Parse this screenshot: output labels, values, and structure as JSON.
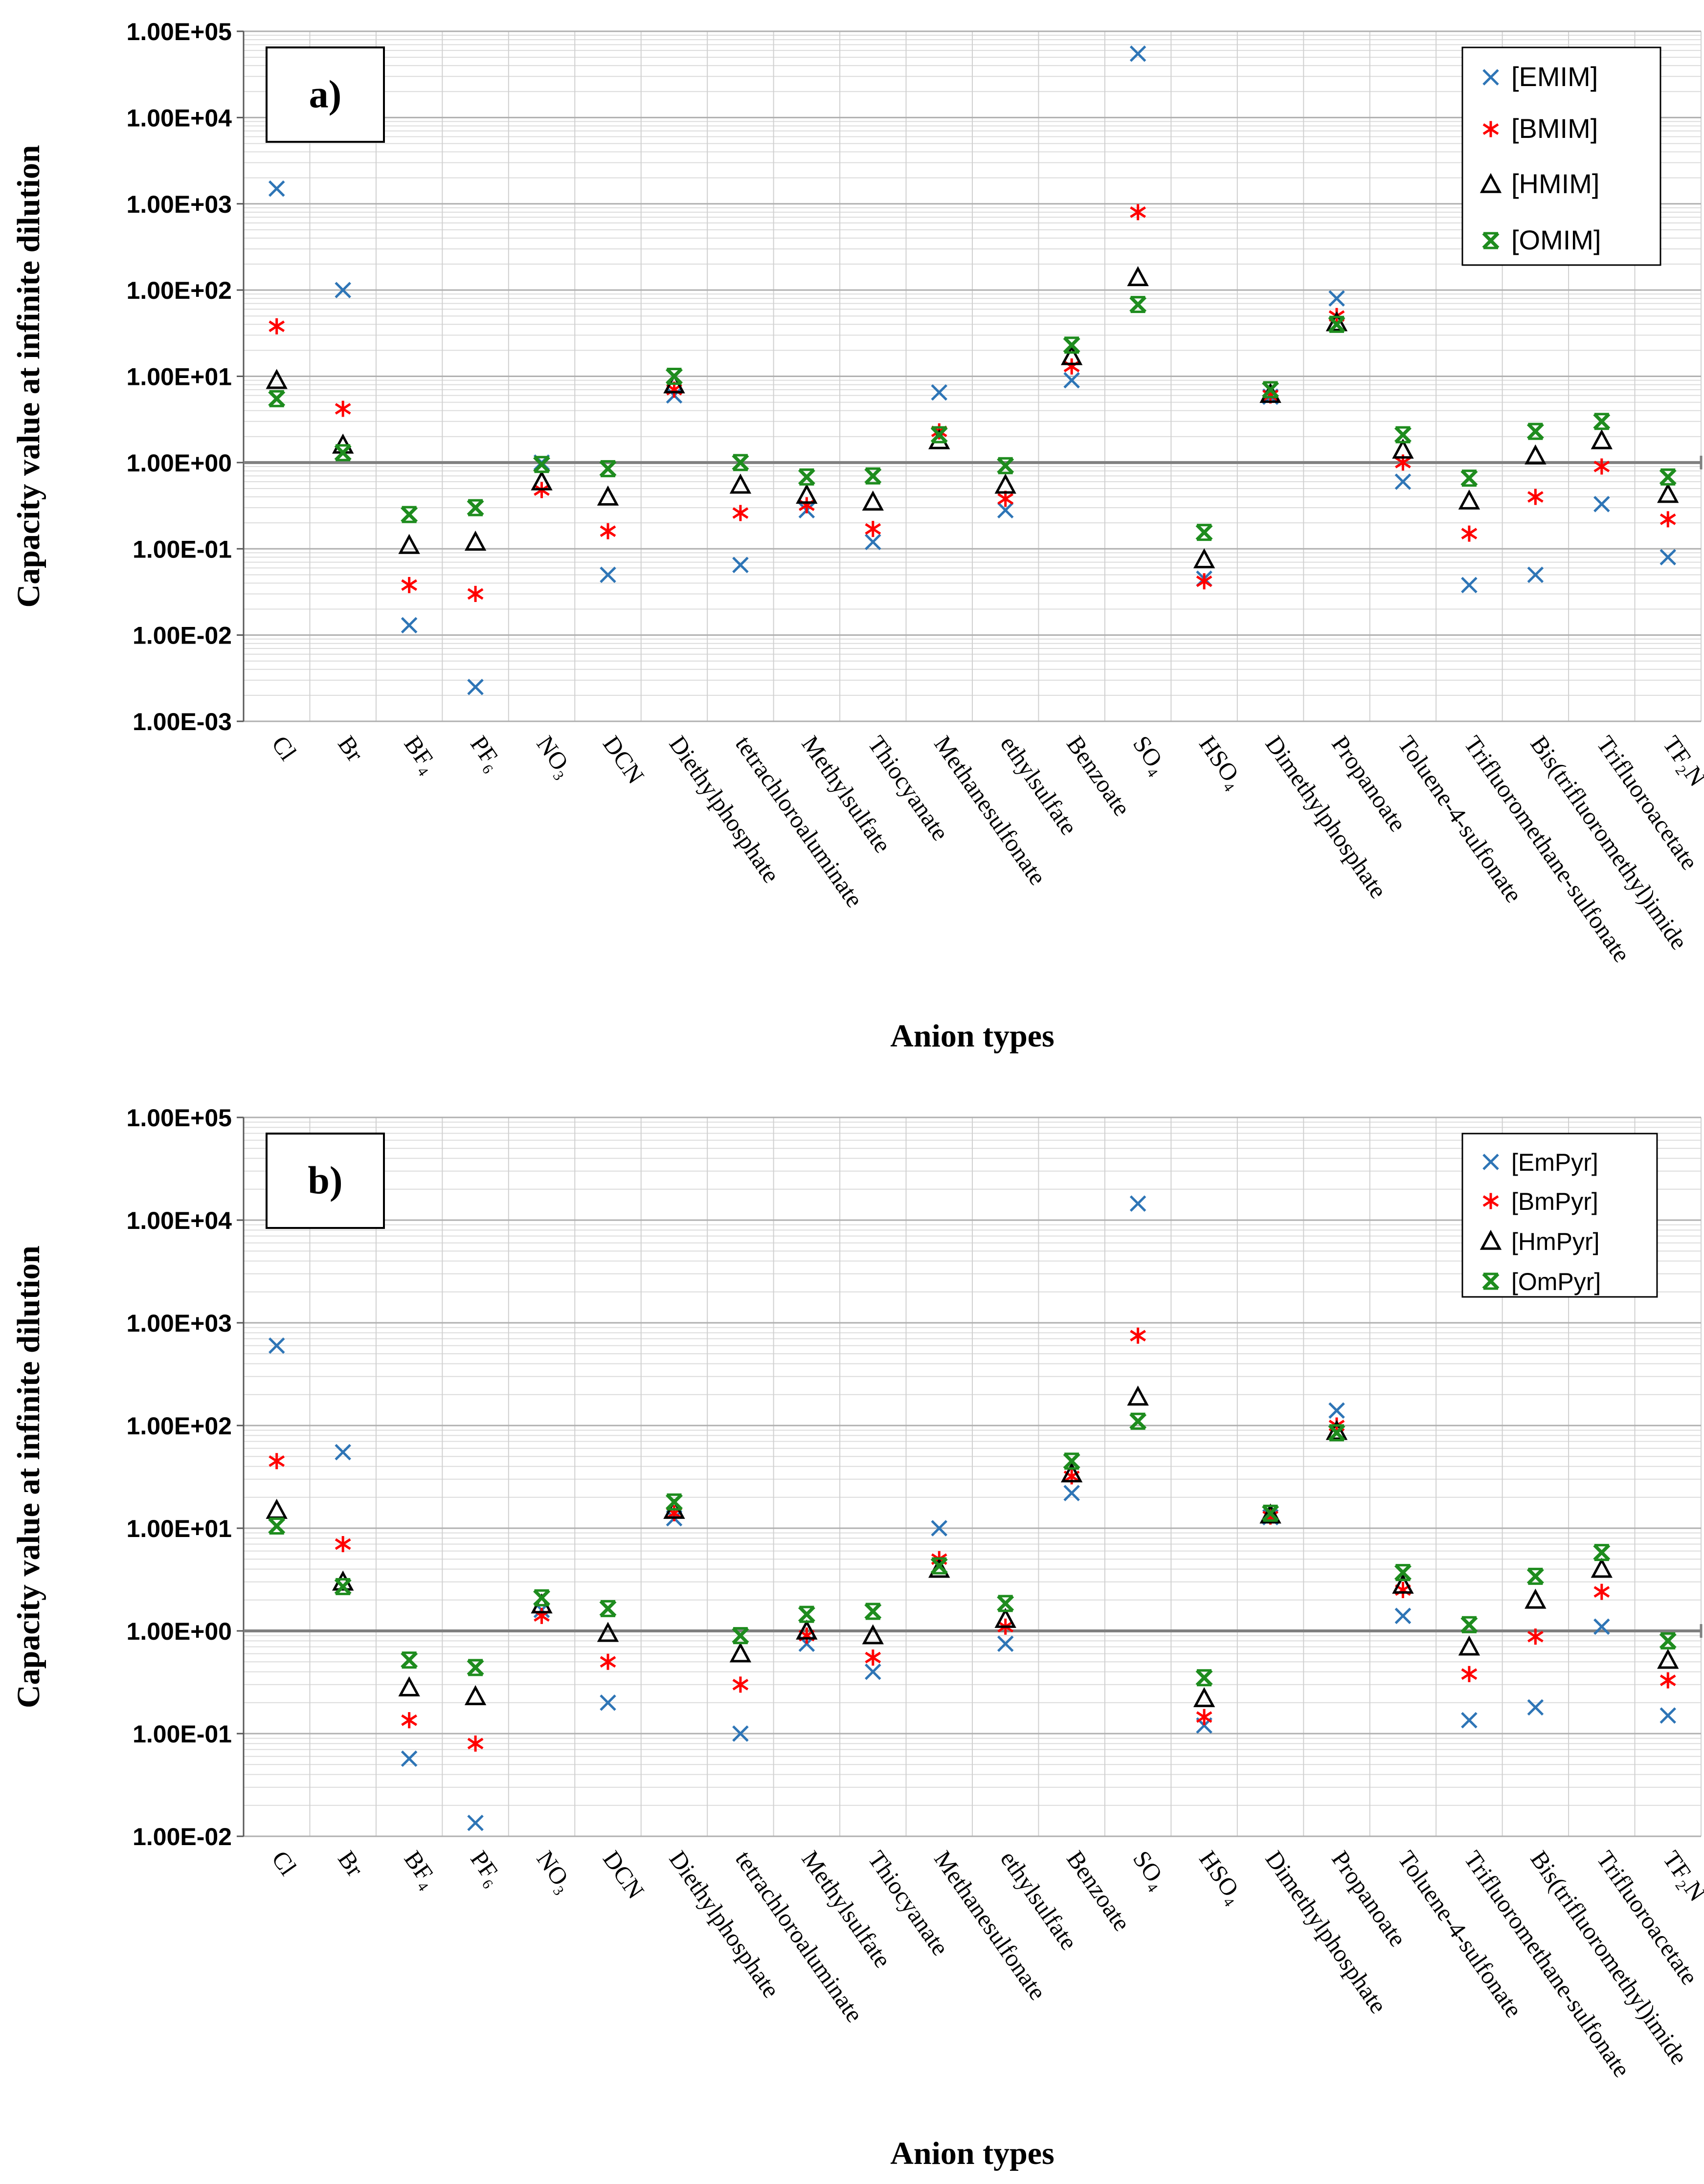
{
  "chart_data": [
    {
      "type": "scatter",
      "panel_label": "a)",
      "ylabel": "Capacity value at infinite dilution",
      "xlabel": "Anion types",
      "yscale": "log",
      "ylim": [
        0.001,
        100000
      ],
      "yticks": [
        "1.00E-03",
        "1.00E-02",
        "1.00E-01",
        "1.00E+00",
        "1.00E+01",
        "1.00E+02",
        "1.00E+03",
        "1.00E+04",
        "1.00E+05"
      ],
      "reference_line": 1,
      "legend_position": "top-right",
      "categories": [
        "Cl",
        "Br",
        "BF₄",
        "PF₆",
        "NO₃",
        "DCN",
        "Diethylphosphate",
        "tetrachloroaluminate",
        "Methylsulfate",
        "Thiocyanate",
        "Methanesulfonate",
        "ethylsulfate",
        "Benzoate",
        "SO₄",
        "HSO₄",
        "Dimethylphosphate",
        "Propanoate",
        "Toluene-4-sulfonate",
        "Trifluoromethane-sulfonate",
        "Bis(trifluoromethyl)imide",
        "Trifluoroacetate",
        "TF₂N"
      ],
      "series": [
        {
          "name": "[EMIM]",
          "marker": "x",
          "color": "#2e75b6",
          "values": [
            1500,
            100,
            0.013,
            0.0025,
            1.0,
            0.05,
            6.0,
            0.065,
            0.28,
            0.12,
            6.5,
            0.28,
            9.0,
            55000,
            0.045,
            5.8,
            80,
            0.6,
            0.038,
            0.05,
            0.33,
            0.08
          ]
        },
        {
          "name": "[BMIM]",
          "marker": "star",
          "color": "#ff0000",
          "values": [
            38,
            4.2,
            0.038,
            0.03,
            0.48,
            0.16,
            7.0,
            0.26,
            0.32,
            0.17,
            2.3,
            0.38,
            13,
            800,
            0.042,
            6.0,
            50,
            1.0,
            0.15,
            0.4,
            0.9,
            0.22
          ]
        },
        {
          "name": "[HMIM]",
          "marker": "triangle",
          "color": "#000000",
          "values": [
            9.0,
            1.6,
            0.11,
            0.12,
            0.6,
            0.4,
            8.0,
            0.55,
            0.42,
            0.35,
            1.8,
            0.55,
            17,
            140,
            0.075,
            6.2,
            42,
            1.4,
            0.36,
            1.2,
            1.8,
            0.43
          ]
        },
        {
          "name": "[OMIM]",
          "marker": "asterisk",
          "color": "#1e8c1e",
          "values": [
            5.5,
            1.3,
            0.25,
            0.3,
            0.95,
            0.85,
            10,
            1.0,
            0.68,
            0.7,
            2.1,
            0.92,
            23,
            68,
            0.155,
            7.0,
            40,
            2.1,
            0.66,
            2.3,
            3.0,
            0.68
          ]
        }
      ]
    },
    {
      "type": "scatter",
      "panel_label": "b)",
      "ylabel": "Capacity value at infinite dilution",
      "xlabel": "Anion types",
      "yscale": "log",
      "ylim": [
        0.01,
        100000
      ],
      "yticks": [
        "1.00E-02",
        "1.00E-01",
        "1.00E+00",
        "1.00E+01",
        "1.00E+02",
        "1.00E+03",
        "1.00E+04",
        "1.00E+05"
      ],
      "reference_line": 1,
      "legend_position": "top-right",
      "categories": [
        "Cl",
        "Br",
        "BF₄",
        "PF₆",
        "NO₃",
        "DCN",
        "Diethylphosphate",
        "tetrachloroaluminate",
        "Methylsulfate",
        "Thiocyanate",
        "Methanesulfonate",
        "ethylsulfate",
        "Benzoate",
        "SO₄",
        "HSO₄",
        "Dimethylphosphate",
        "Propanoate",
        "Toluene-4-sulfonate",
        "Trifluoromethane-sulfonate",
        "Bis(trifluoromethyl)imide",
        "Trifluoroacetate",
        "TF₂N"
      ],
      "series": [
        {
          "name": "[EmPyr]",
          "marker": "x",
          "color": "#2e75b6",
          "values": [
            600,
            55,
            0.057,
            0.0135,
            1.6,
            0.2,
            12.5,
            0.1,
            0.75,
            0.4,
            10,
            0.75,
            22,
            14500,
            0.12,
            12.8,
            140,
            1.4,
            0.135,
            0.18,
            1.1,
            0.15
          ]
        },
        {
          "name": "[BmPyr]",
          "marker": "star",
          "color": "#ff0000",
          "values": [
            45,
            7.0,
            0.135,
            0.08,
            1.4,
            0.5,
            14,
            0.3,
            0.9,
            0.55,
            5.0,
            1.1,
            32,
            750,
            0.145,
            13,
            100,
            2.5,
            0.38,
            0.88,
            2.4,
            0.33
          ]
        },
        {
          "name": "[HmPyr]",
          "marker": "triangle",
          "color": "#000000",
          "values": [
            15,
            3.0,
            0.28,
            0.23,
            1.8,
            0.95,
            15,
            0.6,
            1.0,
            0.9,
            4.0,
            1.3,
            34,
            190,
            0.22,
            13.5,
            88,
            2.8,
            0.7,
            2.0,
            4.0,
            0.52
          ]
        },
        {
          "name": "[OmPyr]",
          "marker": "asterisk",
          "color": "#1e8c1e",
          "values": [
            10.5,
            2.7,
            0.52,
            0.44,
            2.1,
            1.65,
            18,
            0.9,
            1.45,
            1.55,
            4.3,
            1.85,
            45,
            110,
            0.35,
            14,
            85,
            3.7,
            1.15,
            3.4,
            5.8,
            0.8
          ]
        }
      ]
    }
  ]
}
